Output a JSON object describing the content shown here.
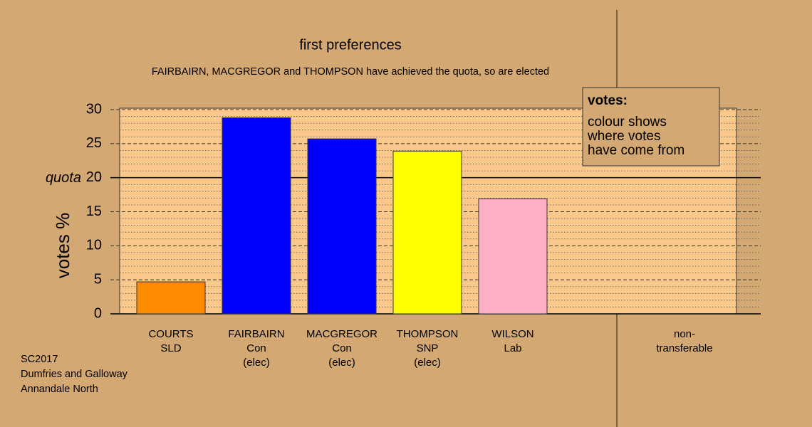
{
  "chart_data": {
    "type": "bar",
    "title": "first preferences",
    "subtitle": "FAIRBAIRN, MACGREGOR and THOMPSON have achieved the quota, so are elected",
    "y_label": "votes %",
    "categories": [
      [
        "COURTS",
        "SLD"
      ],
      [
        "FAIRBAIRN",
        "Con",
        "(elec)"
      ],
      [
        "MACGREGOR",
        "Con",
        "(elec)"
      ],
      [
        "THOMPSON",
        "SNP",
        "(elec)"
      ],
      [
        "WILSON",
        "Lab"
      ],
      [
        "non-",
        "transferable"
      ]
    ],
    "values": [
      4.7,
      28.8,
      25.7,
      23.9,
      16.9,
      0
    ],
    "colors": [
      "#ff8c00",
      "#0000ff",
      "#0000ff",
      "#ffff00",
      "#ffb0c8",
      null
    ],
    "ylim": [
      0,
      30
    ],
    "yticks": [
      0,
      5,
      10,
      15,
      20,
      25,
      30
    ],
    "minor_yticks": [
      1,
      2,
      3,
      4,
      6,
      7,
      8,
      9,
      11,
      12,
      13,
      14,
      16,
      17,
      18,
      19,
      21,
      22,
      23,
      24,
      26,
      27,
      28,
      29
    ],
    "grid": true,
    "quota": {
      "value": 20,
      "label": "quota"
    },
    "legend": {
      "title": "votes:",
      "lines": [
        "colour shows",
        "where votes",
        "have come from"
      ]
    },
    "footer": [
      "SC2017",
      "Dumfries and Galloway",
      "Annandale North"
    ]
  }
}
